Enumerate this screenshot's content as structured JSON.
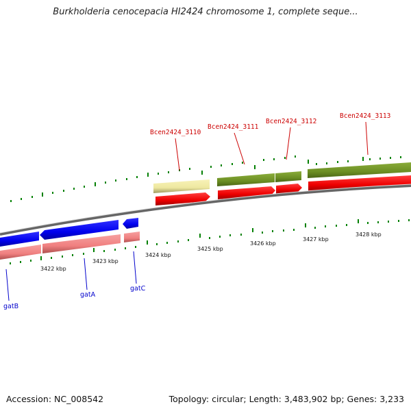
{
  "title": "Burkholderia cenocepacia HI2424 chromosome 1, complete seque...",
  "footer": {
    "accession": "Accession: NC_008542",
    "summary": "Topology: circular; Length: 3,483,902 bp; Genes: 3,233"
  },
  "scale_labels": [
    "3422 kbp",
    "3423 kbp",
    "3424 kbp",
    "3425 kbp",
    "3426 kbp",
    "3427 kbp",
    "3428 kbp"
  ],
  "genes_top": [
    {
      "name": "Bcen2424_3110"
    },
    {
      "name": "Bcen2424_3111"
    },
    {
      "name": "Bcen2424_3112"
    },
    {
      "name": "Bcen2424_3113"
    }
  ],
  "genes_bottom": [
    {
      "name": "gatB"
    },
    {
      "name": "gatA"
    },
    {
      "name": "gatC"
    }
  ],
  "colors": {
    "cds_forward": "#ff0000",
    "cds_reverse": "#0000ff",
    "cds_reverse_light": "#f08080",
    "pseudo_light": "#eee8a0",
    "cog_green": "#6b8e23",
    "backbone": "#808080",
    "tick_green": "#008000",
    "label_red": "#cc0000",
    "label_blue": "#0000cc"
  }
}
